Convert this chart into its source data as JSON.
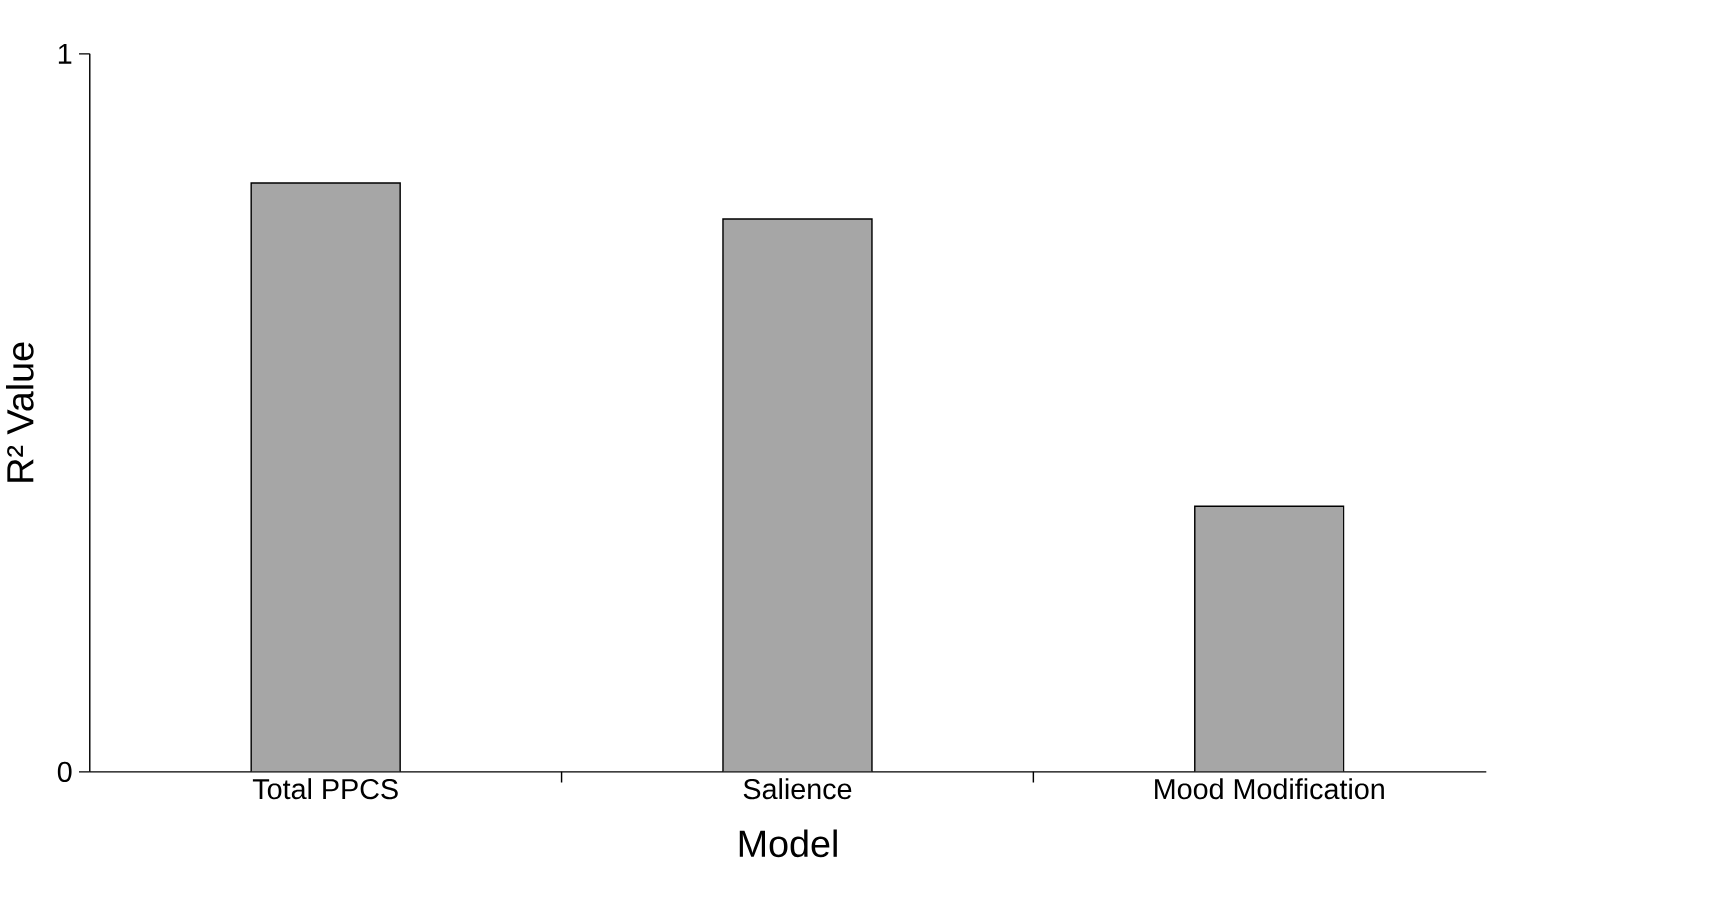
{
  "chart_data": {
    "type": "bar",
    "xlabel": "Model",
    "ylabel": "R² Value",
    "categories": [
      "Total PPCS",
      "Salience",
      "Mood Modification"
    ],
    "values": [
      0.82,
      0.77,
      0.37
    ],
    "color": "#a6a6a6",
    "ylim": [
      0,
      1
    ],
    "yticks": [
      0,
      1
    ],
    "grid": false
  }
}
